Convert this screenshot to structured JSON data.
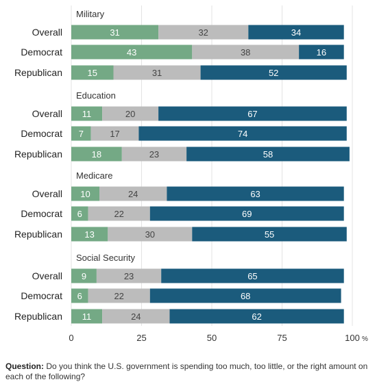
{
  "chart_data": {
    "type": "bar",
    "stacked": true,
    "orientation": "horizontal",
    "x_ticks": [
      0,
      25,
      50,
      75,
      100
    ],
    "x_unit": "%",
    "xlim": [
      0,
      100
    ],
    "grid": true,
    "colors": [
      "#74a985",
      "#bcbcbc",
      "#1b5b7c"
    ],
    "groups": [
      {
        "title": "Military",
        "rows": [
          {
            "label": "Overall",
            "values": [
              31,
              32,
              34
            ]
          },
          {
            "label": "Democrat",
            "values": [
              43,
              38,
              16
            ]
          },
          {
            "label": "Republican",
            "values": [
              15,
              31,
              52
            ]
          }
        ]
      },
      {
        "title": "Education",
        "rows": [
          {
            "label": "Overall",
            "values": [
              11,
              20,
              67
            ]
          },
          {
            "label": "Democrat",
            "values": [
              7,
              17,
              74
            ]
          },
          {
            "label": "Republican",
            "values": [
              18,
              23,
              58
            ]
          }
        ]
      },
      {
        "title": "Medicare",
        "rows": [
          {
            "label": "Overall",
            "values": [
              10,
              24,
              63
            ]
          },
          {
            "label": "Democrat",
            "values": [
              6,
              22,
              69
            ]
          },
          {
            "label": "Republican",
            "values": [
              13,
              30,
              55
            ]
          }
        ]
      },
      {
        "title": "Social Security",
        "rows": [
          {
            "label": "Overall",
            "values": [
              9,
              23,
              65
            ]
          },
          {
            "label": "Democrat",
            "values": [
              6,
              22,
              68
            ]
          },
          {
            "label": "Republican",
            "values": [
              11,
              24,
              62
            ]
          }
        ]
      }
    ]
  },
  "footnote": {
    "label": "Question:",
    "text": "Do you think the U.S. government is spending too much, too little, or the right amount on each of the following?"
  }
}
